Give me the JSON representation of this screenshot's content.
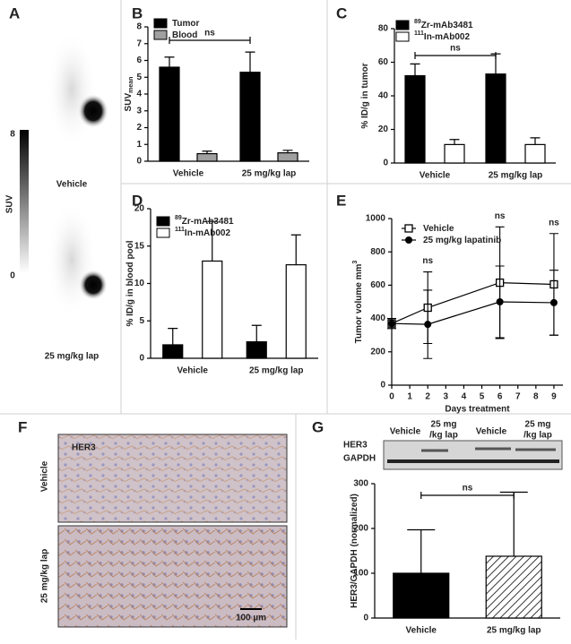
{
  "panel_letters": [
    "A",
    "B",
    "C",
    "D",
    "E",
    "F",
    "G"
  ],
  "panel_a": {
    "colorbar_label": "SUV",
    "colorbar_ticks": [
      8,
      0
    ],
    "image_labels": [
      "Vehicle",
      "25 mg/kg lap"
    ]
  },
  "panel_f": {
    "stain": "HER3",
    "row_labels": [
      "Vehicle",
      "25 mg/kg lap"
    ],
    "scale_bar": "100 µm"
  },
  "panel_g_blot": {
    "lane_labels": [
      [
        "Vehicle"
      ],
      [
        "25 mg",
        "/kg lap"
      ],
      [
        "Vehicle"
      ],
      [
        "25 mg",
        "/kg lap"
      ]
    ],
    "row_labels": [
      "HER3",
      "GAPDH"
    ]
  },
  "chart_data": [
    {
      "type": "bar",
      "y_label": "SUV",
      "y_label_sub": "mean",
      "categories": [
        "Vehicle",
        "25 mg/kg lap"
      ],
      "series": [
        {
          "name": "Tumor",
          "color": "#000000",
          "values": [
            5.6,
            5.3
          ],
          "errors": [
            0.6,
            1.2
          ]
        },
        {
          "name": "Blood",
          "color": "#a0a0a0",
          "values": [
            0.45,
            0.5
          ],
          "errors": [
            0.15,
            0.15
          ]
        }
      ],
      "ylim": [
        0,
        8
      ],
      "yticks": [
        0,
        1,
        2,
        3,
        4,
        5,
        6,
        7,
        8
      ],
      "annotation": "ns"
    },
    {
      "type": "bar",
      "y_label": "% ID/g in tumor",
      "categories": [
        "Vehicle",
        "25 mg/kg lap"
      ],
      "series": [
        {
          "name_sup": "89",
          "name": "Zr-mAb3481",
          "color": "#000000",
          "values": [
            52,
            53
          ],
          "errors": [
            7,
            12
          ]
        },
        {
          "name_sup": "111",
          "name": "In-mAb002",
          "color": "#ffffff",
          "values": [
            11,
            11
          ],
          "errors": [
            3,
            4
          ]
        }
      ],
      "ylim": [
        0,
        80
      ],
      "yticks": [
        0,
        20,
        40,
        60,
        80
      ],
      "annotation": "ns"
    },
    {
      "type": "bar",
      "y_label": "% ID/g in blood pool",
      "categories": [
        "Vehicle",
        "25 mg/kg lap"
      ],
      "series": [
        {
          "name_sup": "89",
          "name": "Zr-mAb3481",
          "color": "#000000",
          "values": [
            1.8,
            2.2
          ],
          "errors": [
            2.2,
            2.2
          ]
        },
        {
          "name_sup": "111",
          "name": "In-mAb002",
          "color": "#ffffff",
          "values": [
            13,
            12.5
          ],
          "errors": [
            5.3,
            4
          ]
        }
      ],
      "ylim": [
        0,
        20
      ],
      "yticks": [
        0,
        5,
        10,
        15,
        20
      ]
    },
    {
      "type": "line",
      "x_label": "Days treatment",
      "y_label": "Tumor volume mm",
      "y_label_sup": "3",
      "x": [
        0,
        2,
        6,
        9
      ],
      "xlim": [
        0,
        9.5
      ],
      "xticks": [
        0,
        1,
        2,
        3,
        4,
        5,
        6,
        7,
        8,
        9
      ],
      "ylim": [
        0,
        1000
      ],
      "yticks": [
        0,
        200,
        400,
        600,
        800,
        1000
      ],
      "series": [
        {
          "name": "Vehicle",
          "marker": "open-square",
          "color": "#000000",
          "values": [
            370,
            465,
            615,
            605
          ],
          "errors": [
            30,
            215,
            335,
            305
          ]
        },
        {
          "name": "25 mg/kg lapatinib",
          "marker": "filled-circle",
          "color": "#000000",
          "values": [
            370,
            365,
            500,
            495
          ],
          "errors": [
            30,
            205,
            215,
            195
          ]
        }
      ],
      "annotations": [
        {
          "x": 2,
          "text": "ns"
        },
        {
          "x": 6,
          "text": "ns"
        },
        {
          "x": 9,
          "text": "ns"
        }
      ]
    },
    {
      "type": "bar",
      "y_label": "HER3/GAPDH (normalized)",
      "categories": [
        "Vehicle",
        "25 mg/kg lap"
      ],
      "series": [
        {
          "fills": [
            "#000000",
            "hatched"
          ],
          "values": [
            100,
            138
          ],
          "errors": [
            97,
            143
          ]
        }
      ],
      "ylim": [
        0,
        300
      ],
      "yticks": [
        0,
        100,
        200,
        300
      ],
      "annotation": "ns"
    }
  ]
}
